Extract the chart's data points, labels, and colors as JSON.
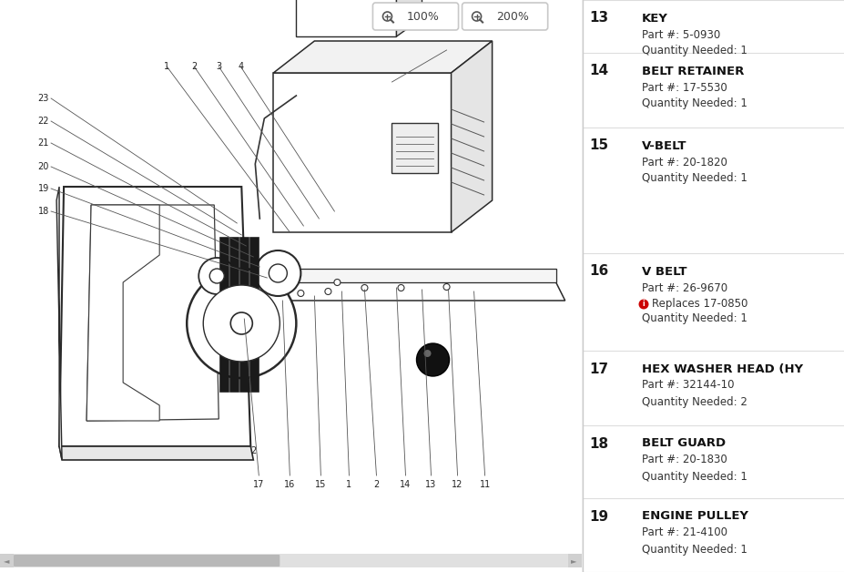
{
  "bg_color": "#e8e8e8",
  "diagram_bg": "#ffffff",
  "panel_bg": "#f5f5f5",
  "row_bg": "#ffffff",
  "divider_color": "#cccccc",
  "replaces_icon_color": "#cc0000",
  "parts": [
    {
      "num": "13",
      "name": "KEY",
      "part": "5-0930",
      "qty": "1",
      "replaces": null,
      "extra_space": false
    },
    {
      "num": "14",
      "name": "BELT RETAINER",
      "part": "17-5530",
      "qty": "1",
      "replaces": null,
      "extra_space": false
    },
    {
      "num": "15",
      "name": "V-BELT",
      "part": "20-1820",
      "qty": "1",
      "replaces": null,
      "extra_space": true
    },
    {
      "num": "16",
      "name": "V BELT",
      "part": "26-9670",
      "qty": "1",
      "replaces": "17-0850",
      "extra_space": false
    },
    {
      "num": "17",
      "name": "HEX WASHER HEAD (HΥ",
      "part": "32144-10",
      "qty": "2",
      "replaces": null,
      "extra_space": false
    },
    {
      "num": "18",
      "name": "BELT GUARD",
      "part": "20-1830",
      "qty": "1",
      "replaces": null,
      "extra_space": false
    },
    {
      "num": "19",
      "name": "ENGINE PULLEY",
      "part": "21-4100",
      "qty": "1",
      "replaces": null,
      "extra_space": false
    }
  ],
  "zoom_buttons": [
    {
      "label": "100%"
    },
    {
      "label": "200%"
    }
  ]
}
